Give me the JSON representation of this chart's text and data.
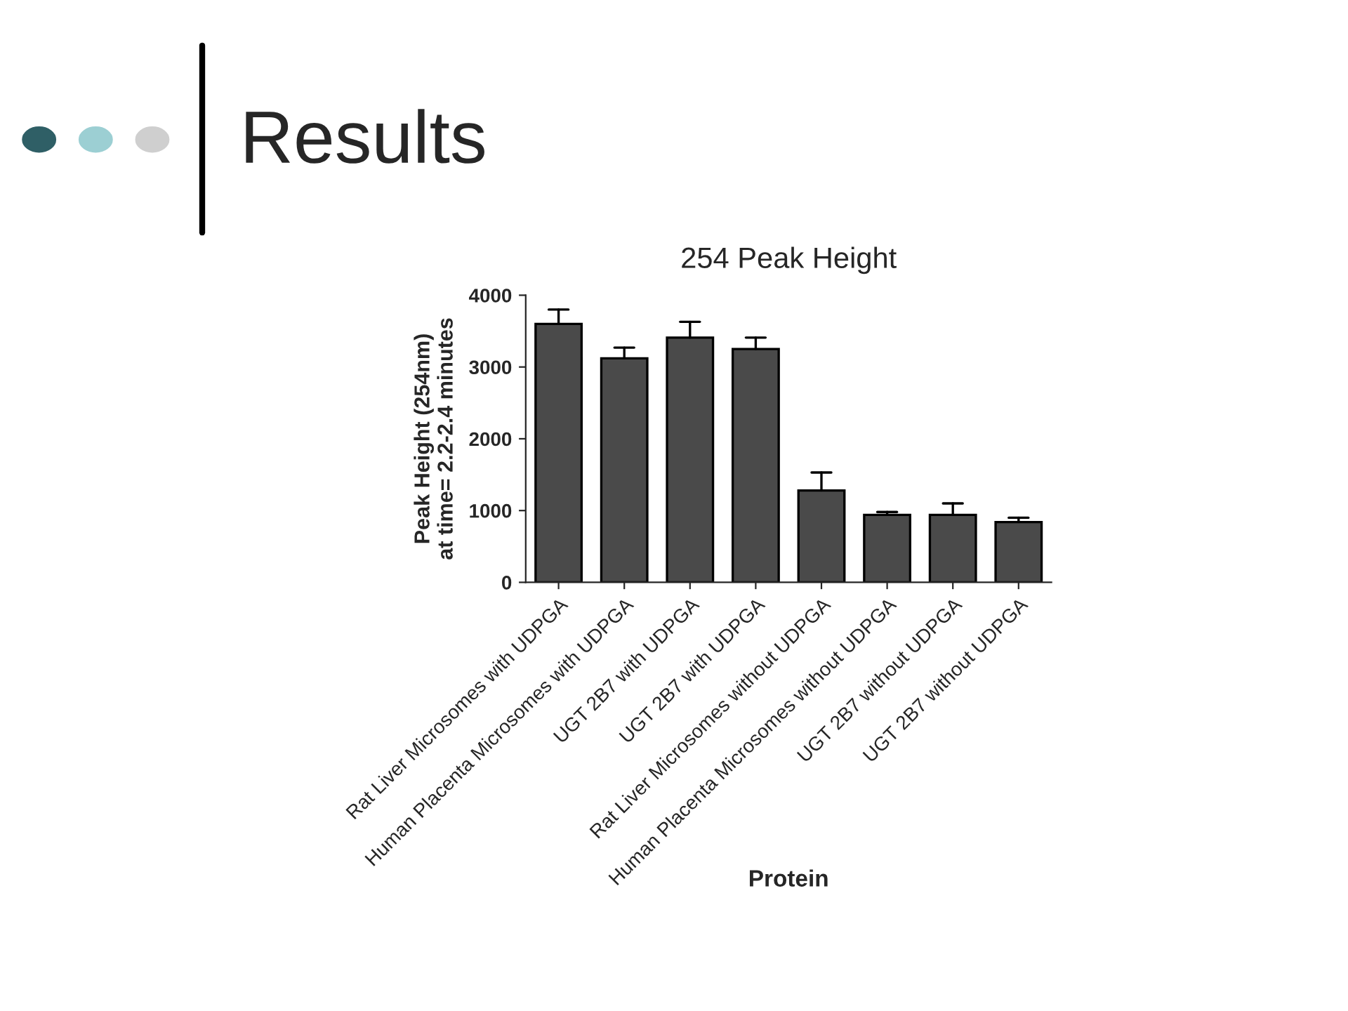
{
  "chart_data": {
    "type": "bar",
    "title": "254 Peak Height",
    "subtitle": "Results",
    "xlabel": "Protein",
    "ylabel": "Peak Height (254nm)\nat time= 2.2-2.4 minutes",
    "categories": [
      "Rat Liver Microsomes with UDPGA",
      "Human Placenta Microsomes with UDPGA",
      "UGT 2B7 with UDPGA",
      "UGT 2B7 with UDPGA",
      "Rat Liver Microsomes without UDPGA",
      "Human Placenta Microsomes without UDPGA",
      "UGT 2B7 without UDPGA",
      "UGT 2B7 without UDPGA"
    ],
    "values": [
      3600,
      3120,
      3410,
      3250,
      1280,
      940,
      940,
      840
    ],
    "errors": [
      [
        3600,
        3800
      ],
      [
        3120,
        3270
      ],
      [
        3410,
        3630
      ],
      [
        3250,
        3410
      ],
      [
        1280,
        1530
      ],
      [
        940,
        980
      ],
      [
        940,
        1100
      ],
      [
        840,
        900
      ]
    ],
    "color": "#4a4a4a",
    "ylim": [
      0,
      4000
    ],
    "yticks": [
      0,
      1000,
      2000,
      3000,
      4000
    ],
    "grid": false,
    "legend": false
  }
}
